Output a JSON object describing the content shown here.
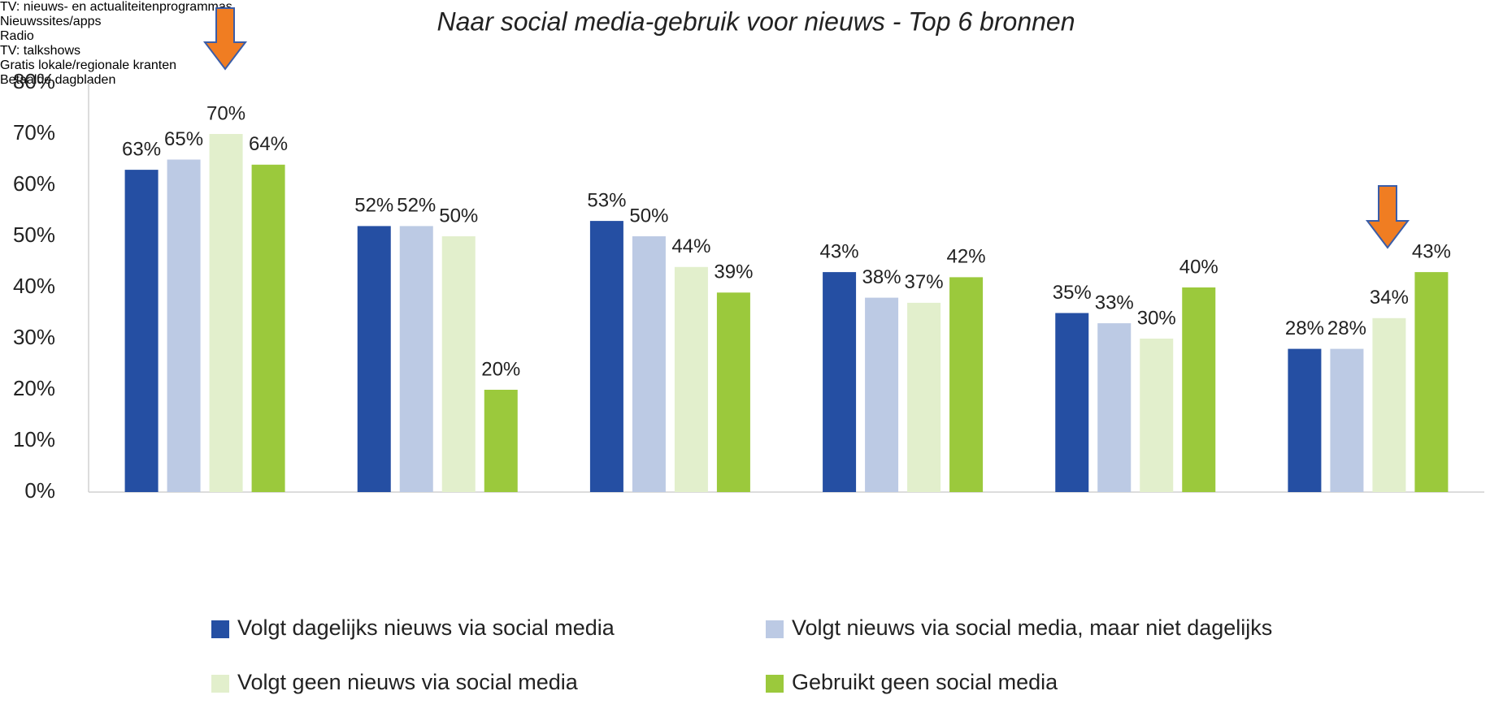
{
  "chart_data": {
    "type": "bar",
    "title": "Naar social media-gebruik voor nieuws - Top 6 bronnen",
    "categories": [
      "TV: nieuws- en actualiteitenprogrammas",
      "Nieuwssites/apps",
      "Radio",
      "TV: talkshows",
      "Gratis lokale/regionale kranten",
      "Betaalde dagbladen"
    ],
    "series": [
      {
        "name": "Volgt dagelijks nieuws via social media",
        "color": "#254fa3",
        "values": [
          63,
          52,
          53,
          43,
          35,
          28
        ],
        "value_labels": [
          "63%",
          "52%",
          "53%",
          "43%",
          "35%",
          "28%"
        ]
      },
      {
        "name": "Volgt nieuws via social media, maar niet dagelijks",
        "color": "#bccae4",
        "values": [
          65,
          52,
          50,
          38,
          33,
          28
        ],
        "value_labels": [
          "65%",
          "52%",
          "50%",
          "38%",
          "33%",
          "28%"
        ]
      },
      {
        "name": "Volgt geen nieuws via social media",
        "color": "#e2efcc",
        "values": [
          70,
          50,
          44,
          37,
          30,
          34
        ],
        "value_labels": [
          "70%",
          "50%",
          "44%",
          "37%",
          "30%",
          "34%"
        ]
      },
      {
        "name": "Gebruikt geen social media",
        "color": "#9bc93c",
        "values": [
          64,
          20,
          39,
          42,
          40,
          43
        ],
        "value_labels": [
          "64%",
          "20%",
          "39%",
          "42%",
          "40%",
          "43%"
        ]
      }
    ],
    "ylim": [
      0,
      80
    ],
    "yticks": [
      {
        "value": 0,
        "label": "0%"
      },
      {
        "value": 10,
        "label": "10%"
      },
      {
        "value": 20,
        "label": "20%"
      },
      {
        "value": 30,
        "label": "30%"
      },
      {
        "value": 40,
        "label": "40%"
      },
      {
        "value": 50,
        "label": "50%"
      },
      {
        "value": 60,
        "label": "60%"
      },
      {
        "value": 70,
        "label": "70%"
      },
      {
        "value": 80,
        "label": "80%"
      }
    ],
    "grid": false,
    "legend": "bottom"
  }
}
